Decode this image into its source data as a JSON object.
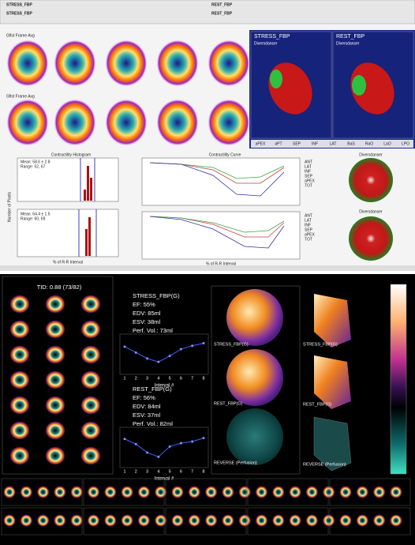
{
  "top": {
    "stress_label": "STRESS_FBP",
    "rest_label": "REST_FBP",
    "row_labels": [
      "Gflst Frame Avg",
      "Gflst Frame Avg"
    ],
    "views3d": [
      {
        "title": "STRESS_FBP",
        "sub": "Diversdanser"
      },
      {
        "title": "REST_FBP",
        "sub": "Diversdanser"
      }
    ],
    "view_buttons": [
      "aPEX",
      "aPT",
      "SEP",
      "INF",
      "LAT",
      "BaS",
      "RaO",
      "LaO",
      "LPO"
    ],
    "histogram_title": "Contractility Histogram",
    "curve_title": "Contractility Curve",
    "histogram_stats": [
      [
        "Mean: 58.6 ± 2.8",
        "Range: 52, 67"
      ],
      [
        "Mean: 64.4 ± 1.5",
        "Range: 60, 69"
      ]
    ],
    "hist_x_label": "% of R-R Interval",
    "hist_y_label": "Number of Pixels",
    "curve_legend": [
      "ANT",
      "LAT",
      "INF",
      "SEP",
      "aPEX",
      "TOT"
    ],
    "polar_title": "Diversdanser"
  },
  "bottom": {
    "tid": "TID: 0.88 (73/82)",
    "stats": [
      {
        "name": "STRESS_FBP(G)",
        "lines": [
          "EF: 55%",
          "EDV: 85ml",
          "ESV: 38ml",
          "Perf. Vol.: 73ml"
        ]
      },
      {
        "name": "REST_FBP(G)",
        "lines": [
          "EF: 56%",
          "EDV: 84ml",
          "ESV: 37ml",
          "Perf. Vol.: 82ml"
        ]
      }
    ],
    "curve_x_label": "Interval #",
    "curves": {
      "x": [
        1,
        2,
        3,
        4,
        5,
        6,
        7,
        8
      ],
      "xlim": [
        1,
        8
      ],
      "ylim": [
        55,
        95
      ],
      "series": [
        {
          "values": [
            84,
            77,
            70,
            66,
            73,
            81,
            85,
            88
          ]
        },
        {
          "values": [
            85,
            79,
            69,
            64,
            76,
            80,
            82,
            86
          ]
        }
      ]
    },
    "polar_labels": [
      "STRESS_FBP(G)",
      "REST_FBP(G)",
      "REVERSE (Perfusion)"
    ],
    "side_labels": [
      "STRESS_FBP(G)",
      "REST_FBP(G)",
      "REVERSE (Perfusion)"
    ]
  }
}
